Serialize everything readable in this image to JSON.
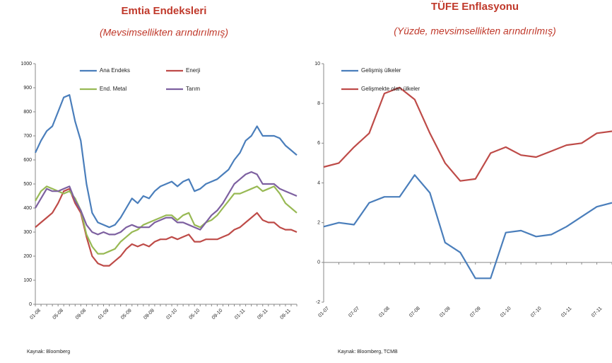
{
  "chart_data": [
    {
      "type": "line",
      "title": "Emtia Endeksleri",
      "subtitle": "(Mevsimsellikten arındırılmış)",
      "source": "Kaynak: Bloomberg",
      "categories": [
        "01-08",
        null,
        null,
        null,
        "05-08",
        null,
        null,
        null,
        "09-08",
        null,
        null,
        null,
        "01-09",
        null,
        null,
        null,
        "05-09",
        null,
        null,
        null,
        "09-09",
        null,
        null,
        null,
        "01-10",
        null,
        null,
        null,
        "05-10",
        null,
        null,
        null,
        "09-10",
        null,
        null,
        null,
        "01-11",
        null,
        null,
        null,
        "05-11",
        null,
        null,
        null,
        "09-11",
        null,
        null
      ],
      "series": [
        {
          "name": "Ana Endeks",
          "color": "#4a7ebb",
          "values": [
            630,
            680,
            720,
            740,
            800,
            860,
            870,
            760,
            680,
            500,
            380,
            340,
            330,
            320,
            330,
            360,
            400,
            440,
            420,
            450,
            440,
            470,
            490,
            500,
            510,
            490,
            510,
            520,
            470,
            480,
            500,
            510,
            520,
            540,
            560,
            600,
            630,
            680,
            700,
            740,
            700,
            700,
            700,
            690,
            660,
            640,
            620
          ]
        },
        {
          "name": "Enerji",
          "color": "#be4b48",
          "values": [
            320,
            340,
            360,
            380,
            420,
            470,
            480,
            420,
            380,
            280,
            200,
            170,
            160,
            160,
            180,
            200,
            230,
            250,
            240,
            250,
            240,
            260,
            270,
            270,
            280,
            270,
            280,
            290,
            260,
            260,
            270,
            270,
            270,
            280,
            290,
            310,
            320,
            340,
            360,
            380,
            350,
            340,
            340,
            320,
            310,
            310,
            300
          ]
        },
        {
          "name": "End. Metal",
          "color": "#98b954",
          "values": [
            430,
            470,
            490,
            480,
            470,
            460,
            470,
            440,
            390,
            290,
            240,
            210,
            210,
            220,
            230,
            260,
            280,
            300,
            310,
            330,
            340,
            350,
            360,
            370,
            370,
            350,
            370,
            380,
            330,
            320,
            340,
            350,
            370,
            400,
            430,
            460,
            460,
            470,
            480,
            490,
            470,
            480,
            490,
            460,
            420,
            400,
            380
          ]
        },
        {
          "name": "Tarım",
          "color": "#7d60a0",
          "values": [
            400,
            440,
            480,
            470,
            470,
            480,
            490,
            430,
            390,
            330,
            300,
            290,
            300,
            290,
            290,
            300,
            320,
            330,
            320,
            320,
            320,
            340,
            350,
            360,
            360,
            340,
            340,
            330,
            320,
            310,
            340,
            370,
            390,
            420,
            460,
            500,
            520,
            540,
            550,
            540,
            500,
            500,
            500,
            480,
            470,
            460,
            450
          ]
        }
      ],
      "ylim": [
        0,
        1000
      ],
      "yticks": [
        0,
        100,
        200,
        300,
        400,
        500,
        600,
        700,
        800,
        900,
        1000
      ],
      "legend": "upper center"
    },
    {
      "type": "line",
      "title": "TÜFE Enflasyonu",
      "subtitle": "(Yüzde, mevsimsellikten arındırılmış)",
      "source": "Kaynak: Bloomberg, TCMB",
      "categories": [
        "01-07",
        null,
        "07-07",
        null,
        "01-08",
        null,
        "07-08",
        null,
        "01-09",
        null,
        "07-09",
        null,
        "01-10",
        null,
        "07-10",
        null,
        "01-11",
        null,
        "07-11",
        null
      ],
      "series": [
        {
          "name": "Gelişmiş ülkeler",
          "color": "#4a7ebb",
          "values": [
            1.8,
            2.0,
            1.9,
            3.0,
            3.3,
            3.3,
            4.4,
            3.5,
            1.0,
            0.5,
            -0.8,
            -0.8,
            1.5,
            1.6,
            1.3,
            1.4,
            1.8,
            2.3,
            2.8,
            3.0
          ]
        },
        {
          "name": "Gelişmekte olan ülkeler",
          "color": "#be4b48",
          "values": [
            4.8,
            5.0,
            5.8,
            6.5,
            8.5,
            8.8,
            8.2,
            6.5,
            5.0,
            4.1,
            4.2,
            5.5,
            5.8,
            5.4,
            5.3,
            5.6,
            5.9,
            6.0,
            6.5,
            6.6
          ]
        }
      ],
      "ylim": [
        -2,
        10
      ],
      "yticks": [
        -2,
        0,
        2,
        4,
        6,
        8,
        10
      ],
      "legend": "upper left"
    }
  ]
}
